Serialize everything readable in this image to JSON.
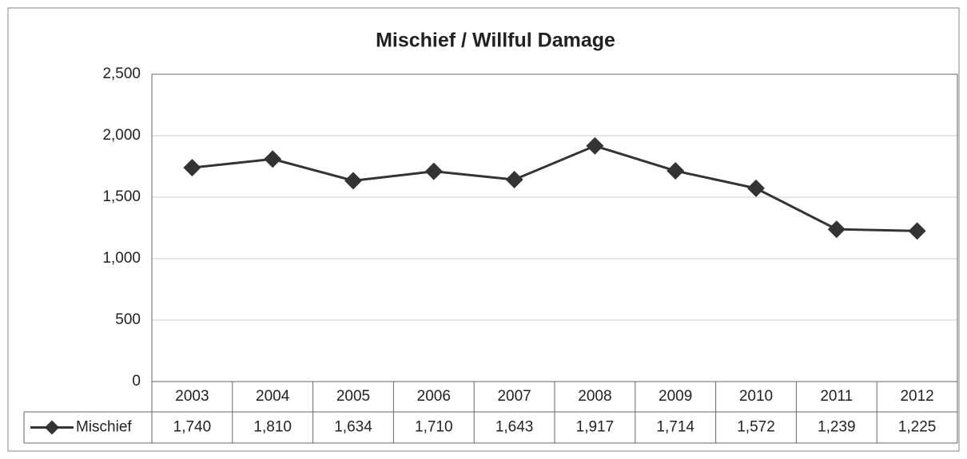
{
  "chart_data": {
    "type": "line",
    "title": "Mischief / Willful Damage",
    "categories": [
      "2003",
      "2004",
      "2005",
      "2006",
      "2007",
      "2008",
      "2009",
      "2010",
      "2011",
      "2012"
    ],
    "series": [
      {
        "name": "Mischief",
        "color": "#333333",
        "values": [
          1740,
          1810,
          1634,
          1710,
          1643,
          1917,
          1714,
          1572,
          1239,
          1225
        ],
        "value_labels": [
          "1,740",
          "1,810",
          "1,634",
          "1,710",
          "1,643",
          "1,917",
          "1,714",
          "1,572",
          "1,239",
          "1,225"
        ]
      }
    ],
    "ylim": [
      0,
      2500
    ],
    "yticks": [
      0,
      500,
      {
        "value": 1000,
        "label": "1,000"
      },
      {
        "value": 1500,
        "label": "1,500"
      },
      {
        "value": 2000,
        "label": "2,000"
      },
      {
        "value": 2500,
        "label": "2,500"
      }
    ],
    "grid": true
  }
}
